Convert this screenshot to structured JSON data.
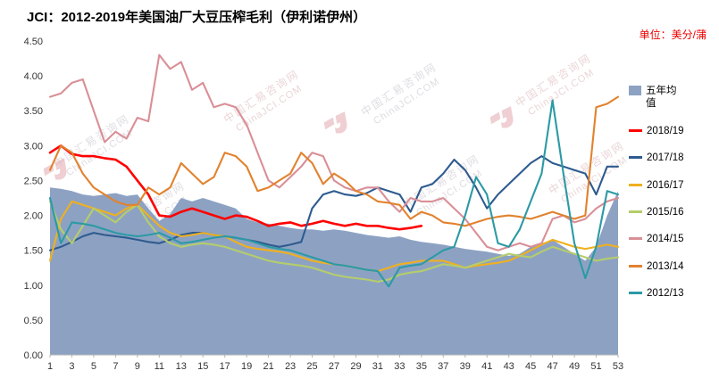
{
  "header": {
    "title": "JCI：2012-2019年美国油厂大豆压榨毛利（伊利诺伊州）",
    "unit_label": "单位：美分/蒲"
  },
  "watermark": {
    "line1": "中国汇易咨询网",
    "line2": "ChinaJCI.COM"
  },
  "chart_data": {
    "type": "line",
    "title": "JCI：2012-2019年美国油厂大豆压榨毛利（伊利诺伊州）",
    "unit": "美分/蒲",
    "xlabel": "",
    "ylabel": "",
    "grid": false,
    "legend_position": "right",
    "ylim": [
      0,
      4.5
    ],
    "yticks": [
      "0.00",
      "0.50",
      "1.00",
      "1.50",
      "2.00",
      "2.50",
      "3.00",
      "3.50",
      "4.00",
      "4.50"
    ],
    "xticks": [
      1,
      3,
      5,
      7,
      9,
      11,
      13,
      15,
      17,
      19,
      21,
      23,
      25,
      27,
      29,
      31,
      33,
      35,
      37,
      39,
      41,
      43,
      45,
      47,
      49,
      51,
      53
    ],
    "x_range": [
      1,
      53
    ],
    "area_series": {
      "name": "五年均值",
      "color": "#8da2c3",
      "values": [
        2.4,
        2.38,
        2.35,
        2.3,
        2.28,
        2.3,
        2.32,
        2.28,
        2.3,
        2.1,
        1.92,
        2.02,
        2.25,
        2.2,
        2.25,
        2.2,
        2.15,
        2.1,
        1.95,
        1.9,
        1.88,
        1.85,
        1.82,
        1.8,
        1.8,
        1.78,
        1.8,
        1.78,
        1.75,
        1.72,
        1.7,
        1.68,
        1.7,
        1.65,
        1.62,
        1.6,
        1.58,
        1.55,
        1.52,
        1.5,
        1.48,
        1.45,
        1.42,
        1.45,
        1.55,
        1.6,
        1.65,
        1.55,
        1.45,
        1.35,
        1.55,
        2.0,
        2.35
      ]
    },
    "series": [
      {
        "name": "2018/19",
        "color": "#fe0000",
        "values": [
          2.9,
          3.0,
          2.88,
          2.85,
          2.85,
          2.82,
          2.8,
          2.7,
          2.5,
          2.3,
          2.0,
          1.98,
          2.05,
          2.1,
          2.05,
          2.0,
          1.95,
          2.0,
          1.98,
          1.92,
          1.85,
          1.88,
          1.9,
          1.85,
          1.88,
          1.92,
          1.88,
          1.85,
          1.88,
          1.85,
          1.85,
          1.82,
          1.8,
          1.82,
          1.85
        ]
      },
      {
        "name": "2017/18",
        "color": "#2e5b8f",
        "values": [
          1.5,
          1.55,
          1.62,
          1.7,
          1.75,
          1.72,
          1.7,
          1.68,
          1.65,
          1.62,
          1.6,
          1.65,
          1.72,
          1.75,
          1.75,
          1.72,
          1.7,
          1.68,
          1.65,
          1.62,
          1.58,
          1.55,
          1.58,
          1.62,
          2.1,
          2.3,
          2.35,
          2.3,
          2.28,
          2.32,
          2.4,
          2.35,
          2.3,
          2.05,
          2.4,
          2.45,
          2.6,
          2.8,
          2.65,
          2.4,
          2.1,
          2.3,
          2.45,
          2.6,
          2.75,
          2.85,
          2.75,
          2.7,
          2.65,
          2.6,
          2.3,
          2.7,
          2.7
        ]
      },
      {
        "name": "2016/17",
        "color": "#f0b01f",
        "values": [
          1.35,
          1.95,
          2.2,
          2.15,
          2.1,
          2.05,
          2.0,
          2.1,
          2.15,
          2.0,
          1.85,
          1.75,
          1.7,
          1.72,
          1.75,
          1.72,
          1.7,
          1.62,
          1.55,
          1.52,
          1.5,
          1.48,
          1.45,
          1.4,
          1.35,
          1.32,
          1.3,
          1.28,
          1.25,
          1.22,
          1.2,
          1.25,
          1.3,
          1.32,
          1.35,
          1.35,
          1.35,
          1.3,
          1.25,
          1.28,
          1.3,
          1.32,
          1.35,
          1.42,
          1.5,
          1.58,
          1.65,
          1.6,
          1.55,
          1.52,
          1.55,
          1.58,
          1.55
        ]
      },
      {
        "name": "2015/16",
        "color": "#b5cd6b",
        "values": [
          2.2,
          1.8,
          1.6,
          1.85,
          2.1,
          2.0,
          1.9,
          2.05,
          2.15,
          1.9,
          1.7,
          1.6,
          1.55,
          1.58,
          1.6,
          1.58,
          1.55,
          1.5,
          1.45,
          1.4,
          1.35,
          1.32,
          1.3,
          1.28,
          1.25,
          1.2,
          1.15,
          1.12,
          1.1,
          1.08,
          1.05,
          1.08,
          1.15,
          1.18,
          1.2,
          1.25,
          1.3,
          1.28,
          1.25,
          1.3,
          1.35,
          1.4,
          1.45,
          1.42,
          1.4,
          1.48,
          1.55,
          1.5,
          1.45,
          1.4,
          1.35,
          1.38,
          1.4
        ]
      },
      {
        "name": "2014/15",
        "color": "#d98f97",
        "values": [
          3.7,
          3.75,
          3.9,
          3.95,
          3.5,
          3.05,
          3.2,
          3.1,
          3.4,
          3.35,
          4.3,
          4.1,
          4.2,
          3.8,
          3.9,
          3.55,
          3.6,
          3.55,
          3.3,
          2.9,
          2.5,
          2.4,
          2.55,
          2.7,
          2.9,
          2.85,
          2.5,
          2.4,
          2.35,
          2.4,
          2.4,
          2.2,
          2.05,
          2.25,
          2.2,
          2.2,
          2.25,
          2.1,
          1.95,
          1.75,
          1.55,
          1.5,
          1.55,
          1.6,
          1.55,
          1.6,
          1.95,
          2.0,
          1.9,
          1.95,
          2.1,
          2.2,
          2.25
        ]
      },
      {
        "name": "2013/14",
        "color": "#e2822d",
        "values": [
          2.65,
          3.0,
          2.9,
          2.6,
          2.4,
          2.3,
          2.2,
          2.15,
          2.15,
          2.4,
          2.3,
          2.4,
          2.75,
          2.6,
          2.45,
          2.55,
          2.9,
          2.85,
          2.7,
          2.35,
          2.4,
          2.5,
          2.6,
          2.9,
          2.75,
          2.45,
          2.6,
          2.5,
          2.35,
          2.3,
          2.2,
          2.18,
          2.15,
          1.95,
          2.05,
          2.0,
          1.9,
          1.88,
          1.85,
          1.9,
          1.95,
          1.98,
          2.0,
          1.98,
          1.95,
          2.0,
          2.05,
          2.0,
          1.95,
          2.0,
          3.55,
          3.6,
          3.7
        ]
      },
      {
        "name": "2012/13",
        "color": "#2b9aa5",
        "values": [
          2.25,
          1.6,
          1.9,
          1.88,
          1.85,
          1.8,
          1.75,
          1.72,
          1.7,
          1.72,
          1.75,
          1.68,
          1.6,
          1.62,
          1.65,
          1.68,
          1.7,
          1.68,
          1.65,
          1.6,
          1.55,
          1.52,
          1.5,
          1.45,
          1.4,
          1.35,
          1.3,
          1.28,
          1.25,
          1.22,
          1.2,
          0.98,
          1.25,
          1.28,
          1.3,
          1.4,
          1.5,
          1.55,
          2.0,
          2.55,
          2.3,
          1.6,
          1.55,
          1.8,
          2.2,
          2.6,
          3.65,
          2.6,
          1.6,
          1.1,
          1.55,
          2.35,
          2.3
        ]
      }
    ]
  }
}
